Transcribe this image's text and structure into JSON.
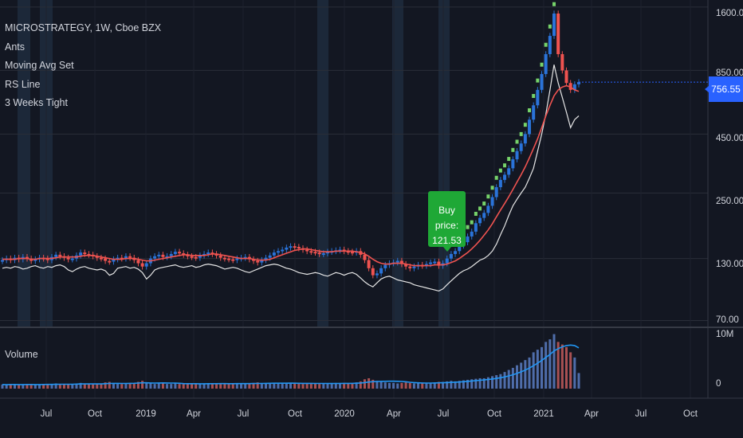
{
  "symbol_title": "MICROSTRATEGY, 1W, Cboe BZX",
  "indicators": [
    "Ants",
    "Moving Avg Set",
    "RS Line",
    "3 Weeks Tight"
  ],
  "volume_label": "Volume",
  "last_price": "756.55",
  "annotation": {
    "line1": "Buy price:",
    "line2": "121.53"
  },
  "price_axis": [
    "1600.00",
    "850.00",
    "450.00",
    "250.00",
    "130.00",
    "70.00"
  ],
  "volume_axis": [
    "10M",
    "0"
  ],
  "time_axis": [
    "Jul",
    "Oct",
    "2019",
    "Apr",
    "Jul",
    "Oct",
    "2020",
    "Apr",
    "Jul",
    "Oct",
    "2021",
    "Apr",
    "Jul",
    "Oct"
  ],
  "colors": {
    "up": "#2a73d9",
    "down": "#ef5350",
    "ants": "#76d36a",
    "ma": "#ef5350",
    "rs": "#e6e6e6",
    "volume_ma": "#2196f3",
    "tight_band": "#1f2b3d",
    "tag": "#2962ff",
    "callout": "#1fa836"
  },
  "chart_data": {
    "type": "candlestick",
    "scale": "log",
    "ylim": [
      67,
      1650
    ],
    "price_ticks": [
      1600,
      850,
      450,
      250,
      130,
      70
    ],
    "closes": [
      128,
      130,
      128,
      131,
      129,
      132,
      130,
      127,
      129,
      131,
      130,
      128,
      132,
      135,
      133,
      131,
      129,
      130,
      134,
      138,
      136,
      135,
      133,
      131,
      130,
      127,
      126,
      129,
      131,
      130,
      133,
      131,
      128,
      124,
      120,
      124,
      130,
      133,
      135,
      132,
      133,
      136,
      139,
      137,
      135,
      133,
      132,
      131,
      134,
      136,
      138,
      136,
      134,
      131,
      130,
      129,
      128,
      130,
      131,
      132,
      129,
      127,
      125,
      128,
      131,
      134,
      138,
      140,
      142,
      145,
      147,
      146,
      144,
      142,
      140,
      139,
      138,
      136,
      137,
      139,
      140,
      141,
      142,
      140,
      139,
      138,
      140,
      135,
      128,
      118,
      110,
      112,
      118,
      122,
      124,
      125,
      127,
      123,
      120,
      118,
      120,
      122,
      121,
      123,
      125,
      126,
      121,
      124,
      130,
      136,
      140,
      148,
      153,
      162,
      170,
      185,
      195,
      205,
      220,
      240,
      265,
      285,
      300,
      320,
      350,
      380,
      410,
      450,
      520,
      600,
      700,
      820,
      1000,
      1200,
      1500,
      1000,
      850,
      750,
      700,
      740,
      756.55
    ],
    "ma": [
      129,
      129,
      129,
      129,
      130,
      130,
      130,
      129,
      129,
      130,
      130,
      130,
      130,
      131,
      132,
      132,
      132,
      132,
      132,
      133,
      134,
      134,
      134,
      133,
      132,
      131,
      130,
      129,
      129,
      129,
      130,
      130,
      130,
      129,
      128,
      127,
      127,
      128,
      129,
      130,
      131,
      132,
      133,
      134,
      135,
      135,
      134,
      134,
      134,
      134,
      135,
      136,
      136,
      135,
      134,
      133,
      132,
      131,
      130,
      130,
      130,
      129,
      128,
      128,
      128,
      129,
      131,
      133,
      135,
      137,
      139,
      141,
      142,
      143,
      143,
      142,
      141,
      140,
      139,
      139,
      139,
      140,
      140,
      140,
      140,
      140,
      139,
      138,
      136,
      133,
      129,
      126,
      124,
      123,
      123,
      124,
      124,
      124,
      123,
      122,
      121,
      121,
      121,
      121,
      121,
      122,
      122,
      122,
      123,
      125,
      127,
      130,
      134,
      138,
      143,
      149,
      156,
      164,
      173,
      184,
      197,
      211,
      225,
      241,
      259,
      279,
      300,
      325,
      355,
      390,
      430,
      480,
      540,
      600,
      660,
      700,
      720,
      730,
      720,
      700,
      690
    ],
    "rs": [
      118,
      119,
      118,
      120,
      119,
      117,
      118,
      120,
      121,
      119,
      118,
      120,
      119,
      121,
      122,
      120,
      116,
      114,
      117,
      119,
      120,
      118,
      117,
      116,
      117,
      115,
      110,
      112,
      118,
      119,
      120,
      118,
      119,
      117,
      113,
      106,
      110,
      116,
      118,
      119,
      120,
      121,
      122,
      120,
      119,
      120,
      121,
      119,
      120,
      122,
      123,
      122,
      121,
      119,
      117,
      118,
      119,
      118,
      116,
      114,
      113,
      115,
      117,
      119,
      121,
      122,
      123,
      122,
      120,
      118,
      117,
      115,
      113,
      112,
      111,
      112,
      113,
      112,
      110,
      109,
      111,
      113,
      112,
      110,
      112,
      113,
      111,
      107,
      103,
      100,
      98,
      102,
      106,
      108,
      109,
      107,
      105,
      104,
      103,
      102,
      100,
      99,
      98,
      97,
      96,
      95,
      94,
      96,
      100,
      104,
      108,
      112,
      115,
      117,
      120,
      124,
      128,
      130,
      134,
      140,
      150,
      165,
      180,
      200,
      220,
      235,
      250,
      265,
      290,
      320,
      380,
      450,
      550,
      700,
      900,
      750,
      650,
      560,
      480,
      520,
      540
    ],
    "volume_M": [
      0.8,
      0.7,
      0.9,
      0.8,
      0.7,
      0.8,
      0.9,
      0.8,
      0.7,
      0.8,
      0.9,
      0.8,
      0.9,
      1.0,
      0.9,
      0.8,
      0.9,
      0.8,
      0.9,
      1.1,
      1.0,
      0.9,
      0.8,
      0.9,
      1.0,
      1.2,
      1.3,
      1.0,
      0.9,
      0.9,
      1.0,
      1.1,
      1.0,
      1.3,
      1.5,
      1.2,
      1.0,
      0.9,
      1.0,
      1.0,
      0.9,
      0.9,
      1.0,
      0.9,
      0.9,
      1.0,
      1.0,
      0.9,
      0.9,
      1.0,
      1.0,
      0.9,
      1.0,
      1.0,
      0.9,
      0.9,
      1.0,
      1.0,
      1.0,
      0.9,
      1.0,
      1.1,
      1.2,
      1.0,
      1.0,
      1.1,
      1.1,
      1.0,
      1.0,
      1.0,
      1.1,
      1.0,
      1.0,
      0.9,
      1.0,
      1.0,
      1.0,
      0.9,
      1.0,
      1.0,
      1.0,
      1.1,
      1.1,
      1.1,
      1.0,
      1.0,
      1.2,
      1.4,
      1.8,
      2.0,
      1.7,
      1.5,
      1.3,
      1.2,
      1.1,
      1.1,
      1.0,
      1.1,
      1.2,
      1.1,
      1.0,
      1.1,
      1.0,
      1.1,
      1.1,
      1.2,
      1.3,
      1.3,
      1.4,
      1.5,
      1.4,
      1.5,
      1.6,
      1.7,
      1.8,
      1.9,
      2.0,
      2.0,
      2.2,
      2.4,
      2.6,
      2.8,
      3.2,
      3.6,
      4.0,
      4.5,
      5.0,
      5.5,
      6.0,
      7.0,
      7.5,
      8.0,
      9.0,
      9.5,
      10.5,
      9.0,
      8.5,
      8.0,
      7.0,
      6.0,
      3.0
    ]
  }
}
